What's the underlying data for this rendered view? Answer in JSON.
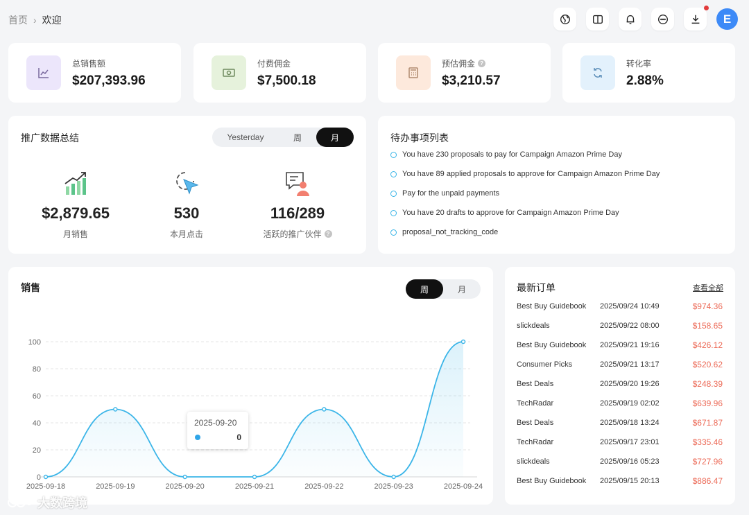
{
  "breadcrumb": {
    "home": "首页",
    "current": "欢迎"
  },
  "header": {
    "icons": [
      "globe-icon",
      "book-icon",
      "bell-icon",
      "chat-icon",
      "download-icon"
    ],
    "avatar_letter": "E"
  },
  "kpis": [
    {
      "label": "总销售额",
      "value": "$207,393.96",
      "icon": "chart-line-icon",
      "color": "#ece6fb"
    },
    {
      "label": "付费佣金",
      "value": "$7,500.18",
      "icon": "cash-icon",
      "color": "#e6f2dc"
    },
    {
      "label": "预估佣金",
      "value": "$3,210.57",
      "icon": "calculator-icon",
      "color": "#fde9dc",
      "help": "?"
    },
    {
      "label": "转化率",
      "value": "2.88%",
      "icon": "refresh-icon",
      "color": "#e3f1fc"
    }
  ],
  "promo": {
    "title": "推广数据总结",
    "tabs": [
      "Yesterday",
      "周",
      "月"
    ],
    "active_tab": "月",
    "stats": [
      {
        "value": "$2,879.65",
        "label": "月销售"
      },
      {
        "value": "530",
        "label": "本月点击"
      },
      {
        "value": "116/289",
        "label": "活跃的推广伙伴",
        "help": "?"
      }
    ]
  },
  "todo": {
    "title": "待办事项列表",
    "items": [
      "You have 230 proposals to pay for Campaign Amazon Prime Day",
      "You have 89 applied proposals to approve for Campaign Amazon Prime Day",
      "Pay for the unpaid payments",
      "You have 20 drafts to approve for Campaign Amazon Prime Day",
      "proposal_not_tracking_code"
    ]
  },
  "sales": {
    "title": "销售",
    "tabs": [
      "周",
      "月"
    ],
    "active_tab": "周",
    "tooltip": {
      "date": "2025-09-20",
      "value": "0"
    }
  },
  "chart_data": {
    "type": "area",
    "x": [
      "2025-09-18",
      "2025-09-19",
      "2025-09-20",
      "2025-09-21",
      "2025-09-22",
      "2025-09-23",
      "2025-09-24"
    ],
    "series": [
      {
        "values": [
          0,
          50,
          0,
          0,
          50,
          0,
          100
        ]
      }
    ],
    "ylim": [
      0,
      100
    ],
    "yticks": [
      0,
      20,
      40,
      60,
      80,
      100
    ],
    "grid": true,
    "color": "#3bb5e8"
  },
  "orders": {
    "title": "最新订单",
    "view_all": "查看全部",
    "rows": [
      {
        "source": "Best Buy Guidebook",
        "date": "2025/09/24 10:49",
        "amount": "$974.36"
      },
      {
        "source": "slickdeals",
        "date": "2025/09/22 08:00",
        "amount": "$158.65"
      },
      {
        "source": "Best Buy Guidebook",
        "date": "2025/09/21 19:16",
        "amount": "$426.12"
      },
      {
        "source": "Consumer Picks",
        "date": "2025/09/21 13:17",
        "amount": "$520.62"
      },
      {
        "source": "Best Deals",
        "date": "2025/09/20 19:26",
        "amount": "$248.39"
      },
      {
        "source": "TechRadar",
        "date": "2025/09/19 02:02",
        "amount": "$639.96"
      },
      {
        "source": "Best Deals",
        "date": "2025/09/18 13:24",
        "amount": "$671.87"
      },
      {
        "source": "TechRadar",
        "date": "2025/09/17 23:01",
        "amount": "$335.46"
      },
      {
        "source": "slickdeals",
        "date": "2025/09/16 05:23",
        "amount": "$727.96"
      },
      {
        "source": "Best Buy Guidebook",
        "date": "2025/09/15 20:13",
        "amount": "$886.47"
      }
    ]
  },
  "watermark": {
    "text": "大数跨境"
  }
}
